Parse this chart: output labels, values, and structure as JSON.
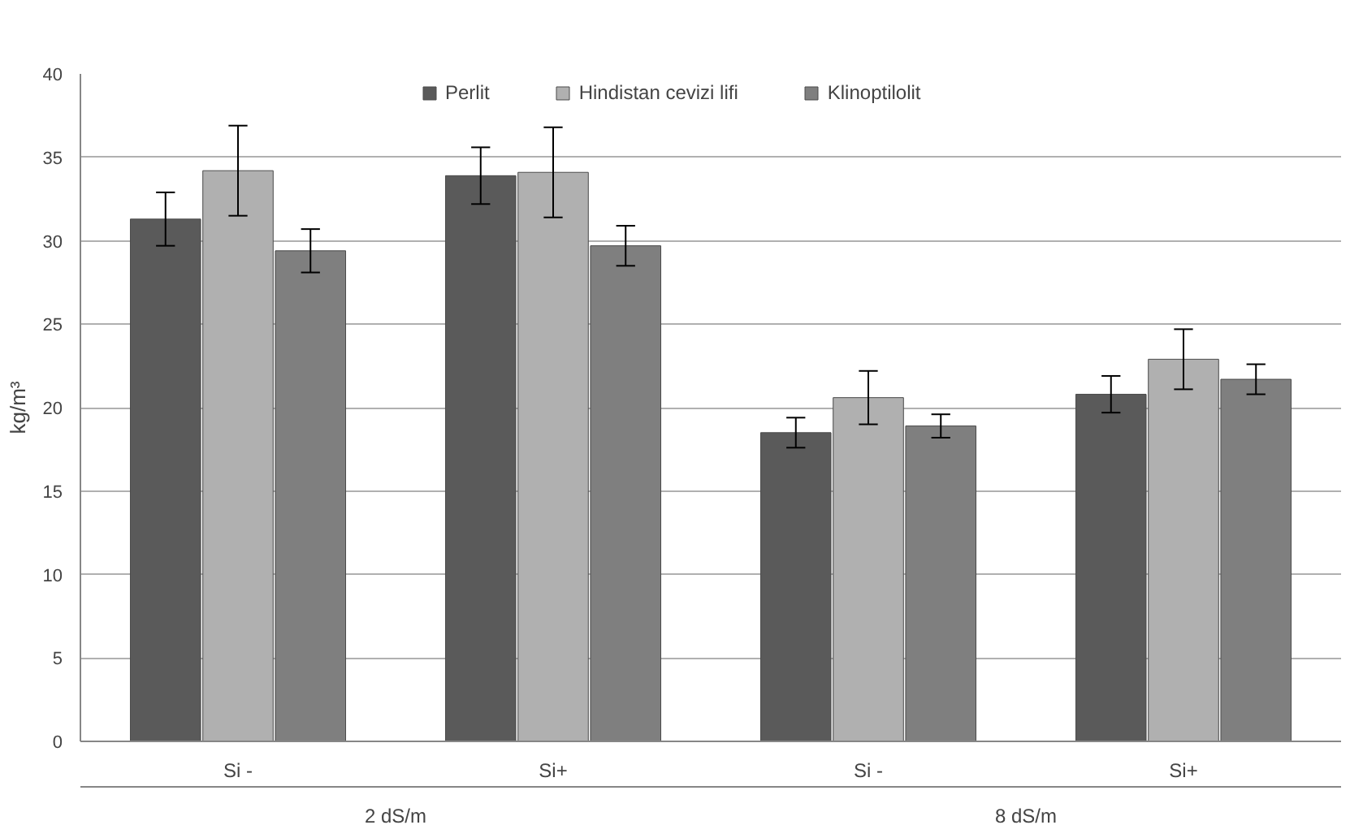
{
  "chart_data": {
    "type": "bar",
    "ylabel": "kg/m³",
    "categories": [
      "Si -",
      "Si+",
      "Si -",
      "Si+"
    ],
    "series": [
      {
        "name": "Perlit",
        "color": "#5a5a5a",
        "values": [
          31.3,
          33.9,
          18.5,
          20.8
        ],
        "errors": [
          1.6,
          1.7,
          0.9,
          1.1
        ]
      },
      {
        "name": "Hindistan cevizi lifi",
        "color": "#b0b0b0",
        "values": [
          34.2,
          34.1,
          20.6,
          22.9
        ],
        "errors": [
          2.7,
          2.7,
          1.6,
          1.8
        ]
      },
      {
        "name": "Klinoptilolit",
        "color": "#7f7f7f",
        "values": [
          29.4,
          29.7,
          18.9,
          21.7
        ],
        "errors": [
          1.3,
          1.2,
          0.7,
          0.9
        ]
      }
    ],
    "annotations": [
      "2 dS/m",
      "8 dS/m"
    ],
    "ylim": [
      0,
      40
    ],
    "yticks": [
      0,
      5,
      10,
      15,
      20,
      25,
      30,
      35,
      40
    ],
    "grid": "y",
    "legend": "top"
  }
}
